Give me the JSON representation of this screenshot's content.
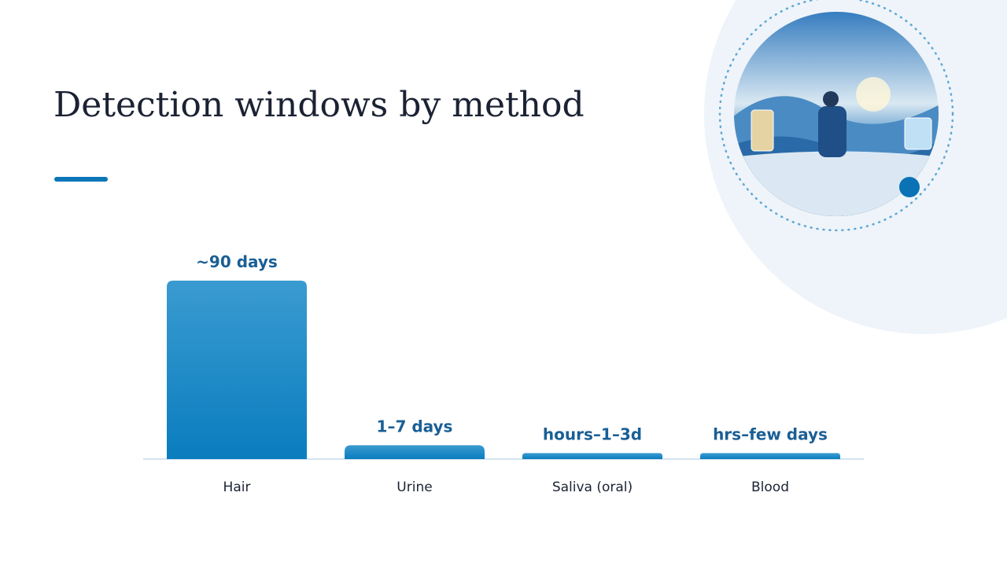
{
  "chart_data": {
    "type": "bar",
    "title": "Detection windows by method",
    "categories": [
      "Hair",
      "Urine",
      "Saliva (oral)",
      "Blood"
    ],
    "values": [
      90,
      7,
      3,
      3
    ],
    "value_labels": [
      "~90 days",
      "1–7 days",
      "hours–1–3d",
      "hrs–few days"
    ],
    "color": "#0a7dbf",
    "label_color": "#1a5f95",
    "ylim": [
      0,
      90
    ]
  }
}
